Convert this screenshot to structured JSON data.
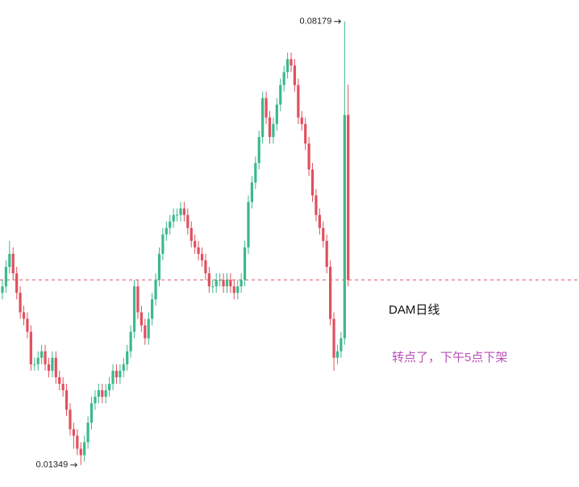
{
  "chart_data": {
    "type": "candlestick",
    "annotations": [
      "DAM日线",
      "转点了，下午5点下架"
    ],
    "up_color": "#3bb98b",
    "down_color": "#e0505e",
    "ylim": [
      0.0101,
      0.0851
    ],
    "open": [
      0.04,
      0.041,
      0.044,
      0.046,
      0.043,
      0.04,
      0.037,
      0.036,
      0.034,
      0.029,
      0.029,
      0.03,
      0.031,
      0.029,
      0.028,
      0.03,
      0.027,
      0.026,
      0.025,
      0.022,
      0.019,
      0.018,
      0.016,
      0.015,
      0.017,
      0.02,
      0.023,
      0.024,
      0.025,
      0.024,
      0.025,
      0.026,
      0.028,
      0.027,
      0.028,
      0.029,
      0.031,
      0.034,
      0.041,
      0.037,
      0.035,
      0.033,
      0.036,
      0.039,
      0.042,
      0.046,
      0.049,
      0.05,
      0.051,
      0.052,
      0.052,
      0.053,
      0.052,
      0.05,
      0.048,
      0.047,
      0.046,
      0.045,
      0.043,
      0.041,
      0.041,
      0.042,
      0.042,
      0.041,
      0.042,
      0.041,
      0.04,
      0.041,
      0.042,
      0.047,
      0.054,
      0.057,
      0.06,
      0.064,
      0.07,
      0.067,
      0.064,
      0.066,
      0.069,
      0.072,
      0.074,
      0.076,
      0.075,
      0.072,
      0.067,
      0.066,
      0.063,
      0.059,
      0.055,
      0.052,
      0.05,
      0.048,
      0.044,
      0.036,
      0.03,
      0.031,
      0.033,
      0.0674
    ],
    "high": [
      0.042,
      0.045,
      0.048,
      0.047,
      0.044,
      0.041,
      0.038,
      0.037,
      0.035,
      0.03,
      0.031,
      0.032,
      0.032,
      0.03,
      0.031,
      0.031,
      0.028,
      0.027,
      0.026,
      0.023,
      0.02,
      0.019,
      0.017,
      0.018,
      0.021,
      0.024,
      0.025,
      0.026,
      0.026,
      0.026,
      0.027,
      0.029,
      0.029,
      0.029,
      0.03,
      0.032,
      0.035,
      0.042,
      0.042,
      0.038,
      0.036,
      0.037,
      0.04,
      0.043,
      0.047,
      0.05,
      0.051,
      0.052,
      0.053,
      0.053,
      0.054,
      0.054,
      0.053,
      0.051,
      0.049,
      0.048,
      0.047,
      0.046,
      0.044,
      0.042,
      0.043,
      0.043,
      0.043,
      0.043,
      0.043,
      0.042,
      0.042,
      0.043,
      0.048,
      0.055,
      0.058,
      0.061,
      0.065,
      0.071,
      0.071,
      0.068,
      0.067,
      0.07,
      0.073,
      0.075,
      0.077,
      0.077,
      0.076,
      0.073,
      0.068,
      0.067,
      0.064,
      0.06,
      0.056,
      0.053,
      0.051,
      0.049,
      0.045,
      0.037,
      0.032,
      0.034,
      0.08179,
      0.0721
    ],
    "low": [
      0.039,
      0.04,
      0.043,
      0.042,
      0.039,
      0.036,
      0.035,
      0.033,
      0.028,
      0.028,
      0.028,
      0.029,
      0.028,
      0.027,
      0.027,
      0.026,
      0.025,
      0.024,
      0.021,
      0.018,
      0.016,
      0.015,
      0.01349,
      0.014,
      0.016,
      0.019,
      0.022,
      0.023,
      0.023,
      0.023,
      0.024,
      0.025,
      0.026,
      0.026,
      0.027,
      0.028,
      0.03,
      0.033,
      0.036,
      0.034,
      0.032,
      0.032,
      0.035,
      0.038,
      0.041,
      0.045,
      0.048,
      0.049,
      0.05,
      0.051,
      0.051,
      0.051,
      0.049,
      0.047,
      0.046,
      0.045,
      0.044,
      0.042,
      0.04,
      0.04,
      0.04,
      0.041,
      0.04,
      0.04,
      0.04,
      0.039,
      0.039,
      0.04,
      0.041,
      0.046,
      0.053,
      0.056,
      0.059,
      0.063,
      0.066,
      0.063,
      0.063,
      0.065,
      0.068,
      0.071,
      0.073,
      0.074,
      0.071,
      0.066,
      0.065,
      0.062,
      0.058,
      0.054,
      0.051,
      0.049,
      0.047,
      0.043,
      0.035,
      0.028,
      0.029,
      0.03,
      0.032,
      0.041
    ],
    "close": [
      0.041,
      0.044,
      0.046,
      0.043,
      0.04,
      0.037,
      0.036,
      0.034,
      0.029,
      0.029,
      0.03,
      0.031,
      0.029,
      0.028,
      0.03,
      0.027,
      0.026,
      0.025,
      0.022,
      0.019,
      0.018,
      0.016,
      0.015,
      0.017,
      0.02,
      0.023,
      0.024,
      0.025,
      0.024,
      0.025,
      0.026,
      0.028,
      0.027,
      0.028,
      0.029,
      0.031,
      0.034,
      0.041,
      0.037,
      0.035,
      0.033,
      0.036,
      0.039,
      0.042,
      0.046,
      0.049,
      0.05,
      0.051,
      0.052,
      0.052,
      0.053,
      0.052,
      0.05,
      0.048,
      0.047,
      0.046,
      0.045,
      0.043,
      0.041,
      0.041,
      0.042,
      0.042,
      0.041,
      0.042,
      0.041,
      0.04,
      0.041,
      0.042,
      0.047,
      0.054,
      0.057,
      0.06,
      0.064,
      0.07,
      0.067,
      0.064,
      0.066,
      0.069,
      0.072,
      0.074,
      0.076,
      0.075,
      0.072,
      0.067,
      0.066,
      0.063,
      0.059,
      0.055,
      0.052,
      0.05,
      0.048,
      0.044,
      0.036,
      0.03,
      0.031,
      0.033,
      0.0674,
      0.042
    ]
  }
}
